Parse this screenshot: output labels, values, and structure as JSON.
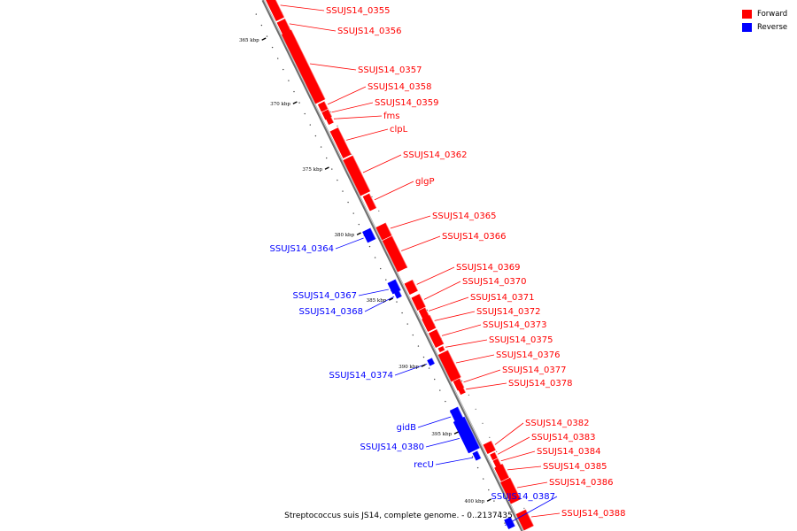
{
  "caption": "Streptococcus suis JS14, complete genome. - 0..2137435",
  "legend": [
    {
      "label": "Forward",
      "color": "#ff0000"
    },
    {
      "label": "Reverse",
      "color": "#0000ff"
    }
  ],
  "ticks": [
    "365 kbp",
    "370 kbp",
    "375 kbp",
    "380 kbp",
    "385 kbp",
    "390 kbp",
    "395 kbp",
    "400 kbp"
  ],
  "genes": [
    {
      "name": "SSUJS14_0355",
      "strand": "forward"
    },
    {
      "name": "SSUJS14_0356",
      "strand": "forward"
    },
    {
      "name": "SSUJS14_0357",
      "strand": "forward"
    },
    {
      "name": "SSUJS14_0358",
      "strand": "forward"
    },
    {
      "name": "SSUJS14_0359",
      "strand": "forward"
    },
    {
      "name": "fms",
      "strand": "forward"
    },
    {
      "name": "clpL",
      "strand": "forward"
    },
    {
      "name": "SSUJS14_0362",
      "strand": "forward"
    },
    {
      "name": "glgP",
      "strand": "forward"
    },
    {
      "name": "SSUJS14_0365",
      "strand": "forward"
    },
    {
      "name": "SSUJS14_0366",
      "strand": "forward"
    },
    {
      "name": "SSUJS14_0364",
      "strand": "reverse"
    },
    {
      "name": "SSUJS14_0369",
      "strand": "forward"
    },
    {
      "name": "SSUJS14_0370",
      "strand": "forward"
    },
    {
      "name": "SSUJS14_0367",
      "strand": "reverse"
    },
    {
      "name": "SSUJS14_0371",
      "strand": "forward"
    },
    {
      "name": "SSUJS14_0368",
      "strand": "reverse"
    },
    {
      "name": "SSUJS14_0372",
      "strand": "forward"
    },
    {
      "name": "SSUJS14_0373",
      "strand": "forward"
    },
    {
      "name": "SSUJS14_0375",
      "strand": "forward"
    },
    {
      "name": "SSUJS14_0376",
      "strand": "forward"
    },
    {
      "name": "SSUJS14_0374",
      "strand": "reverse"
    },
    {
      "name": "SSUJS14_0377",
      "strand": "forward"
    },
    {
      "name": "SSUJS14_0378",
      "strand": "forward"
    },
    {
      "name": "SSUJS14_0382",
      "strand": "forward"
    },
    {
      "name": "gidB",
      "strand": "reverse"
    },
    {
      "name": "SSUJS14_0383",
      "strand": "forward"
    },
    {
      "name": "SSUJS14_0380",
      "strand": "reverse"
    },
    {
      "name": "SSUJS14_0384",
      "strand": "forward"
    },
    {
      "name": "recU",
      "strand": "reverse"
    },
    {
      "name": "SSUJS14_0385",
      "strand": "forward"
    },
    {
      "name": "SSUJS14_0386",
      "strand": "forward"
    },
    {
      "name": "SSUJS14_0387",
      "strand": "reverse"
    },
    {
      "name": "SSUJS14_0388",
      "strand": "forward"
    }
  ]
}
